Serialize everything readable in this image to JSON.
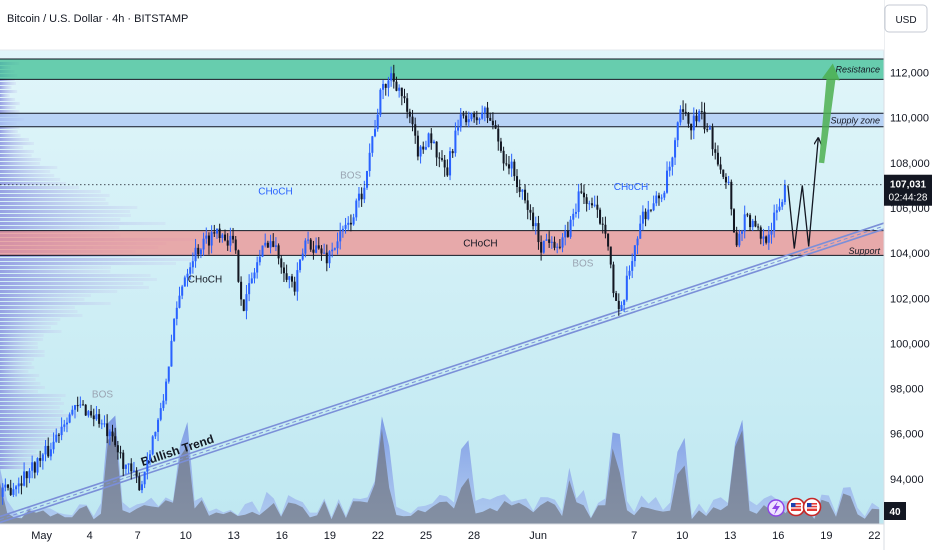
{
  "header": {
    "title": "Bitcoin / U.S. Dollar · 4h · BITSTAMP",
    "currency_button": "USD"
  },
  "price_tag": {
    "price": "107,031",
    "countdown": "02:44:28"
  },
  "bottom_badge": "40",
  "colors": {
    "bull_candle": "#2962ff",
    "bear_candle": "#131722",
    "resistance_zone": "#3fbf94",
    "supply_zone": "#a9c4f5",
    "support_zone": "#f08a8a",
    "trendline": "#7b8fd8",
    "projection_arrow": "#4caf50"
  },
  "chart_data": {
    "type": "candlestick",
    "ylim": [
      92000,
      113000
    ],
    "y_ticks": [
      94000,
      96000,
      98000,
      100000,
      102000,
      104000,
      106000,
      108000,
      110000,
      112000
    ],
    "y_tick_labels": [
      "94,000",
      "96,000",
      "98,000",
      "100,000",
      "102,000",
      "104,000",
      "106,000",
      "108,000",
      "110,000",
      "112,000"
    ],
    "x_ticks": [
      "May",
      "4",
      "7",
      "10",
      "13",
      "16",
      "19",
      "22",
      "25",
      "28",
      "Jun",
      "7",
      "10",
      "13",
      "16",
      "19",
      "22"
    ],
    "x_tick_positions": [
      1,
      4,
      7,
      10,
      13,
      16,
      19,
      22,
      25,
      28,
      32,
      38,
      41,
      44,
      47,
      50,
      53
    ],
    "x_range": [
      -1.6,
      53.6
    ],
    "last_price": 107031,
    "zones": [
      {
        "name": "Resistance",
        "from": 111700,
        "to": 112600
      },
      {
        "name": "Supply zone",
        "from": 109600,
        "to": 110200
      },
      {
        "name": "Support",
        "from": 103900,
        "to": 105000
      }
    ],
    "zone_labels": [
      "Resistance",
      "Supply zone",
      "Support"
    ],
    "trendline": {
      "start": {
        "x": -1.6,
        "y": 92200
      },
      "end": {
        "x": 53.6,
        "y": 105200
      }
    },
    "trendline_label": "Bullish Trend",
    "annotations": [
      {
        "text": "BOS",
        "x": 4.8,
        "y": 97600,
        "style": "gray"
      },
      {
        "text": "CHoCH",
        "x": 11.2,
        "y": 102700,
        "style": "dark"
      },
      {
        "text": "CHoCH",
        "x": 15.6,
        "y": 106600,
        "style": "blue"
      },
      {
        "text": "BOS",
        "x": 20.3,
        "y": 107300,
        "style": "gray"
      },
      {
        "text": "CHoCH",
        "x": 28.4,
        "y": 104300,
        "style": "dark"
      },
      {
        "text": "BOS",
        "x": 34.8,
        "y": 103400,
        "style": "gray"
      },
      {
        "text": "CHoCH",
        "x": 37.8,
        "y": 106800,
        "style": "blue"
      }
    ],
    "price_path": [
      [
        -1.6,
        93200
      ],
      [
        0,
        94200
      ],
      [
        1.5,
        95300
      ],
      [
        2.5,
        96800
      ],
      [
        3.5,
        97200
      ],
      [
        4.5,
        96700
      ],
      [
        5.5,
        95500
      ],
      [
        6.5,
        94300
      ],
      [
        7.2,
        93700
      ],
      [
        7.8,
        95500
      ],
      [
        8.5,
        97000
      ],
      [
        9.2,
        100500
      ],
      [
        9.8,
        102800
      ],
      [
        10.5,
        104000
      ],
      [
        11.2,
        104500
      ],
      [
        12,
        105100
      ],
      [
        13,
        104400
      ],
      [
        13.6,
        101600
      ],
      [
        14.4,
        103500
      ],
      [
        15.2,
        104700
      ],
      [
        16,
        103600
      ],
      [
        16.8,
        102400
      ],
      [
        17.5,
        104600
      ],
      [
        18.2,
        104200
      ],
      [
        18.8,
        103800
      ],
      [
        19.5,
        104600
      ],
      [
        20.2,
        105300
      ],
      [
        21,
        106700
      ],
      [
        21.6,
        108900
      ],
      [
        22.2,
        111100
      ],
      [
        22.8,
        111900
      ],
      [
        23.3,
        111400
      ],
      [
        24,
        109800
      ],
      [
        24.6,
        108300
      ],
      [
        25.2,
        109400
      ],
      [
        25.8,
        108000
      ],
      [
        26.3,
        107500
      ],
      [
        26.8,
        109200
      ],
      [
        27.4,
        110200
      ],
      [
        28,
        109800
      ],
      [
        28.6,
        110300
      ],
      [
        29.2,
        109700
      ],
      [
        29.8,
        108300
      ],
      [
        30.4,
        107700
      ],
      [
        31,
        106500
      ],
      [
        31.6,
        105600
      ],
      [
        32.2,
        104300
      ],
      [
        32.8,
        104800
      ],
      [
        33.4,
        104200
      ],
      [
        34,
        105200
      ],
      [
        34.6,
        106700
      ],
      [
        35.2,
        106200
      ],
      [
        35.8,
        105600
      ],
      [
        36.3,
        105100
      ],
      [
        36.7,
        102300
      ],
      [
        37.1,
        101000
      ],
      [
        37.5,
        102500
      ],
      [
        38,
        104300
      ],
      [
        38.6,
        105800
      ],
      [
        39.2,
        106100
      ],
      [
        39.8,
        106700
      ],
      [
        40.4,
        108200
      ],
      [
        40.9,
        110200
      ],
      [
        41.5,
        109700
      ],
      [
        42.1,
        110100
      ],
      [
        42.7,
        109300
      ],
      [
        43.3,
        108100
      ],
      [
        43.9,
        107000
      ],
      [
        44.4,
        104300
      ],
      [
        44.9,
        105700
      ],
      [
        45.5,
        105100
      ],
      [
        46.1,
        104600
      ],
      [
        46.7,
        105400
      ],
      [
        47.2,
        106300
      ],
      [
        47.5,
        107031
      ]
    ],
    "projection_path": [
      [
        47.6,
        107000
      ],
      [
        48.0,
        104200
      ],
      [
        48.5,
        107000
      ],
      [
        48.9,
        104300
      ],
      [
        49.5,
        109100
      ]
    ],
    "target_arrow": {
      "from": {
        "x": 49.7,
        "y": 108000
      },
      "to": {
        "x": 50.4,
        "y": 112400
      }
    },
    "volume_peaks": [
      5.5,
      9.8,
      22.5,
      27.4,
      36.7,
      40.9,
      44.4
    ],
    "event_icons": [
      "lightning-icon",
      "us-flag-icon",
      "us-flag-icon"
    ]
  }
}
